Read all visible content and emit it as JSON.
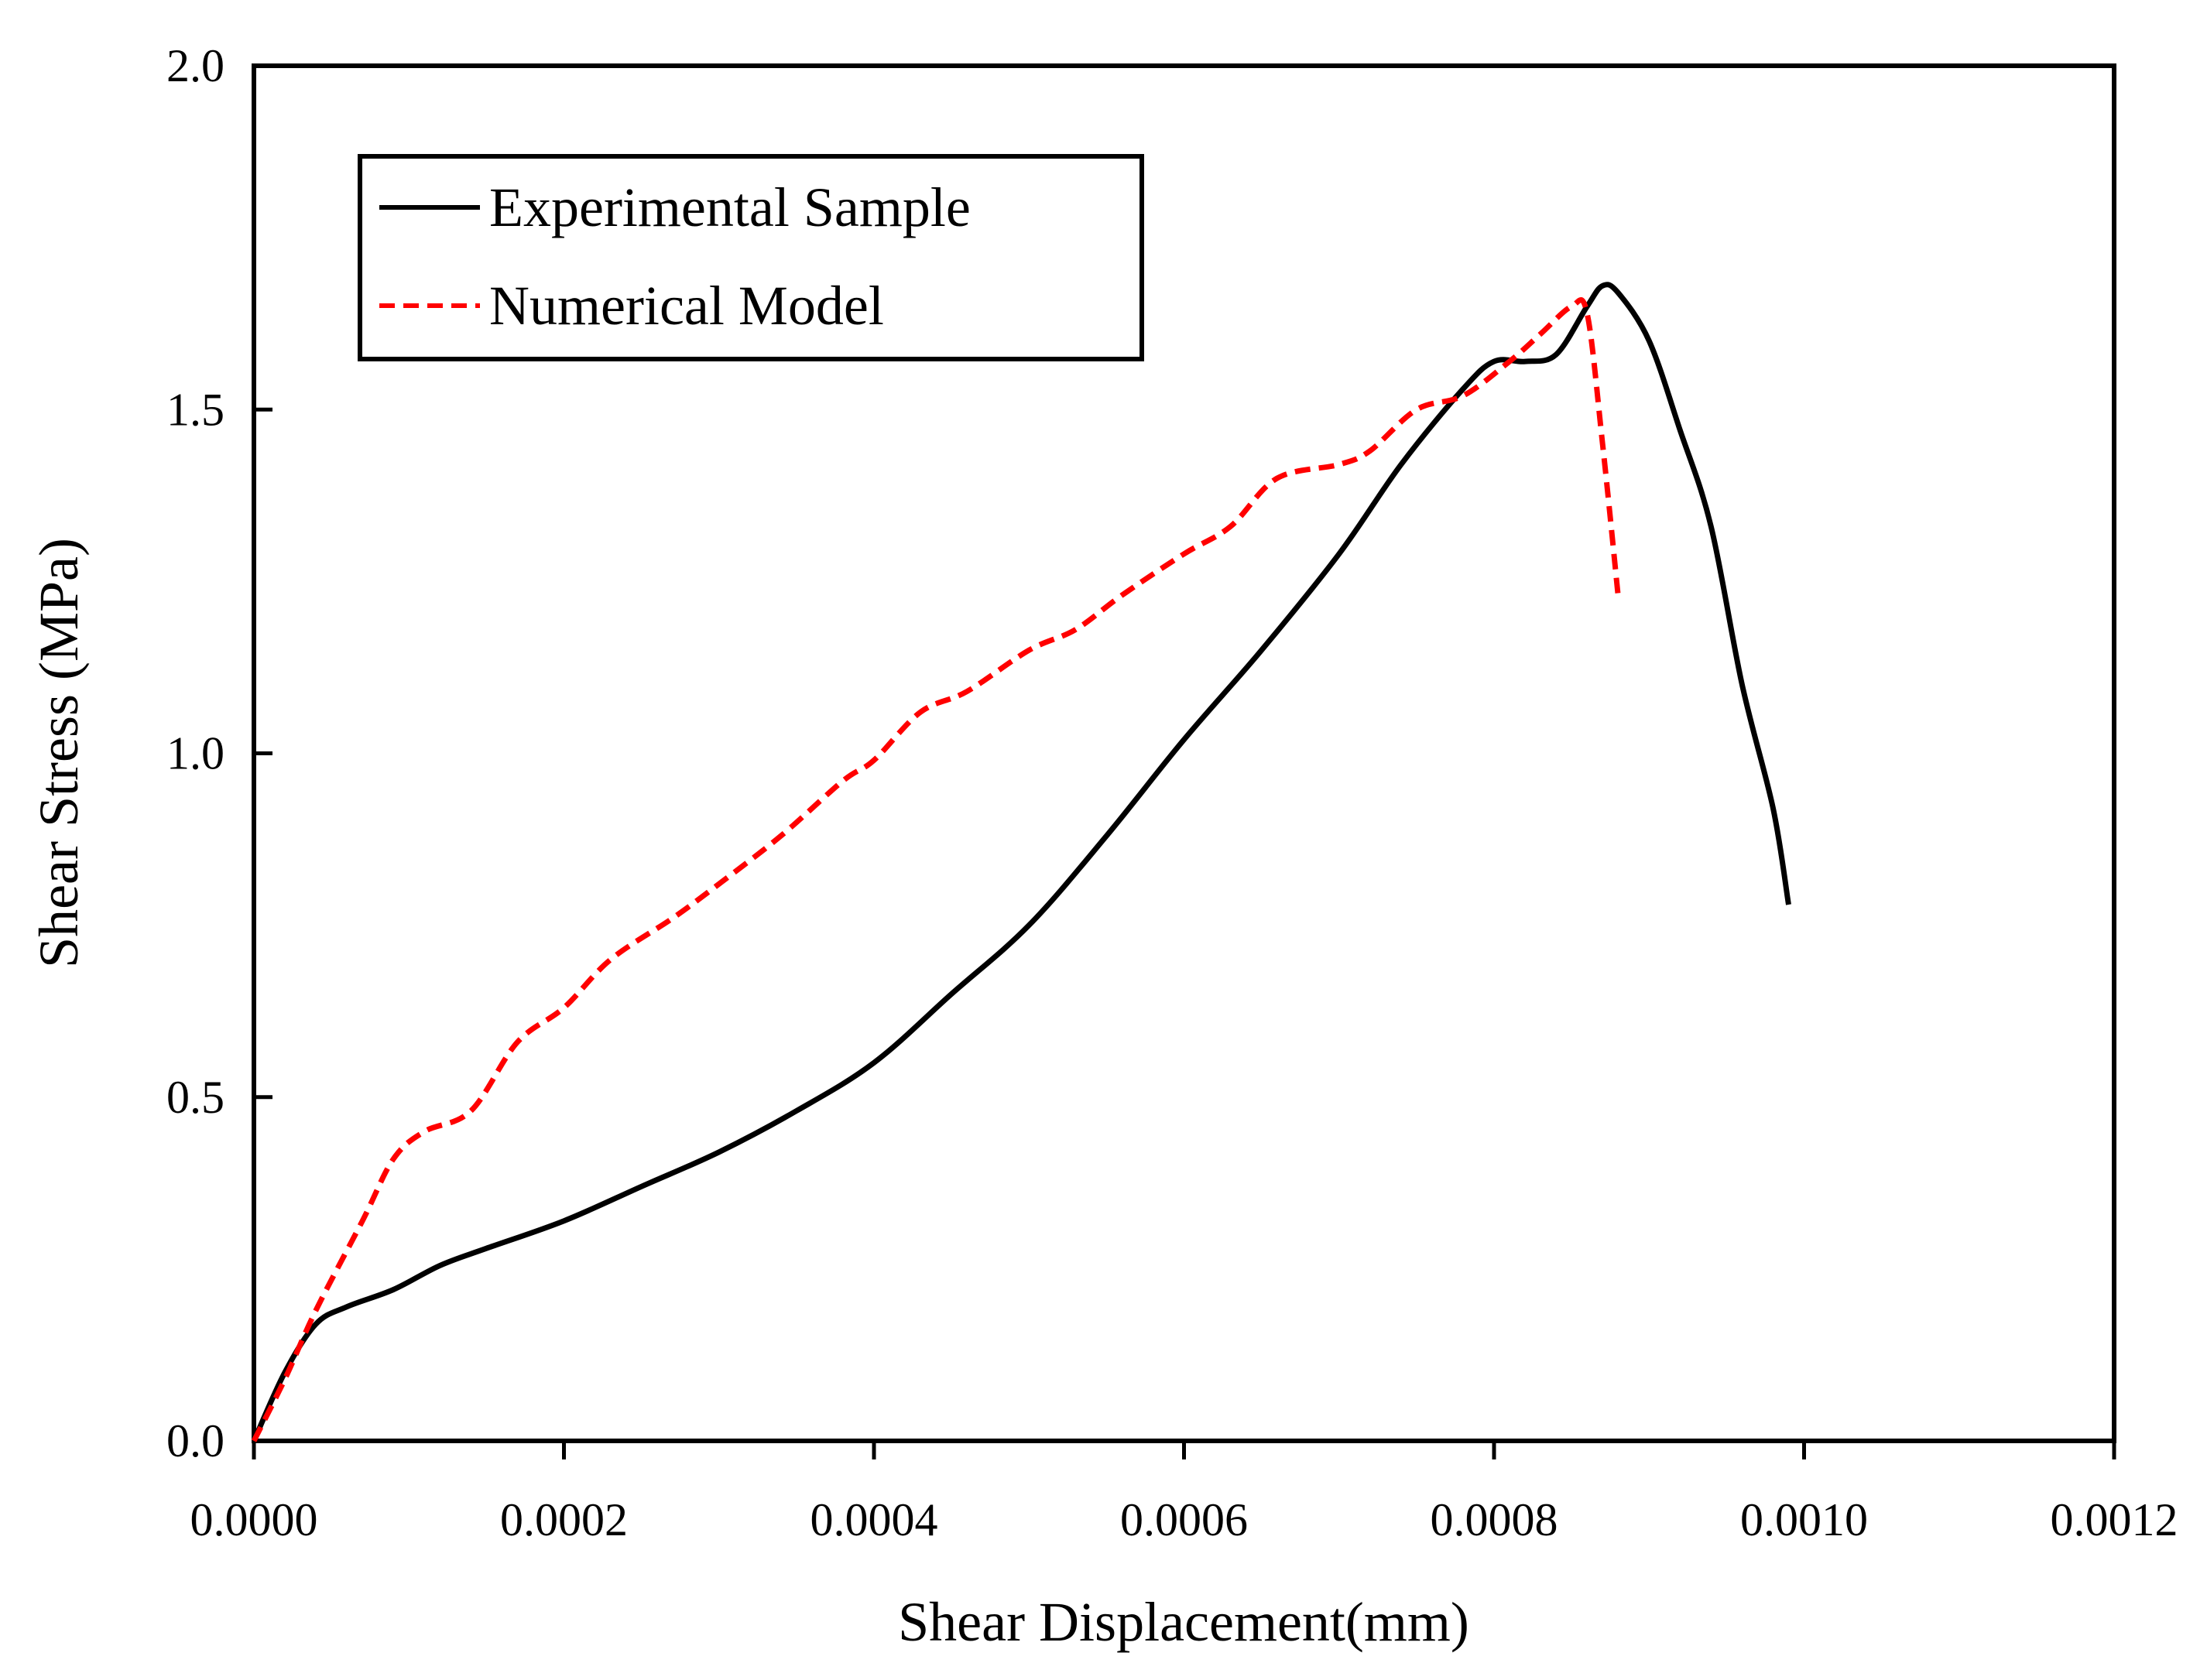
{
  "chart_data": {
    "type": "line",
    "title": "",
    "xlabel": "Shear Displacement(mm)",
    "ylabel": "Shear Stress (MPa)",
    "xlim": [
      0,
      0.0012
    ],
    "ylim": [
      0,
      2.0
    ],
    "x_ticks": [
      "0.0000",
      "0.0002",
      "0.0004",
      "0.0006",
      "0.0008",
      "0.0010",
      "0.0012"
    ],
    "y_ticks": [
      "0.0",
      "0.5",
      "1.0",
      "1.5",
      "2.0"
    ],
    "grid": false,
    "legend_position": "top-left",
    "series": [
      {
        "name": "Experimental Sample",
        "color": "#000000",
        "dash": "solid",
        "x": [
          0,
          2e-05,
          4e-05,
          6e-05,
          9e-05,
          0.00012,
          0.00015,
          0.0002,
          0.00025,
          0.0003,
          0.00035,
          0.0004,
          0.00045,
          0.0005,
          0.00055,
          0.0006,
          0.00065,
          0.0007,
          0.00074,
          0.00078,
          0.0008,
          0.00082,
          0.00084,
          0.00086,
          0.00087,
          0.00088,
          0.0009,
          0.00092,
          0.00094,
          0.00096,
          0.00098,
          0.00099
        ],
        "y": [
          0,
          0.1,
          0.17,
          0.195,
          0.22,
          0.255,
          0.28,
          0.32,
          0.37,
          0.42,
          0.48,
          0.55,
          0.65,
          0.75,
          0.88,
          1.02,
          1.15,
          1.29,
          1.42,
          1.53,
          1.57,
          1.57,
          1.58,
          1.65,
          1.68,
          1.67,
          1.6,
          1.47,
          1.33,
          1.1,
          0.92,
          0.78
        ]
      },
      {
        "name": "Numerical Model",
        "color": "#ff0000",
        "dash": "dashed",
        "x": [
          0,
          2e-05,
          4e-05,
          7e-05,
          9e-05,
          0.00011,
          0.00014,
          0.00017,
          0.0002,
          0.00023,
          0.00027,
          0.0003,
          0.00034,
          0.00038,
          0.0004,
          0.00043,
          0.00046,
          0.0005,
          0.00053,
          0.00056,
          0.0006,
          0.00063,
          0.00066,
          0.0007,
          0.00072,
          0.00075,
          0.00078,
          0.00081,
          0.00083,
          0.00085,
          0.00086,
          0.00087,
          0.00088
        ],
        "y": [
          0,
          0.09,
          0.19,
          0.32,
          0.41,
          0.45,
          0.48,
          0.58,
          0.63,
          0.7,
          0.76,
          0.81,
          0.88,
          0.96,
          0.99,
          1.06,
          1.09,
          1.15,
          1.18,
          1.23,
          1.29,
          1.33,
          1.4,
          1.42,
          1.44,
          1.5,
          1.52,
          1.57,
          1.61,
          1.65,
          1.64,
          1.45,
          1.23
        ]
      }
    ]
  }
}
